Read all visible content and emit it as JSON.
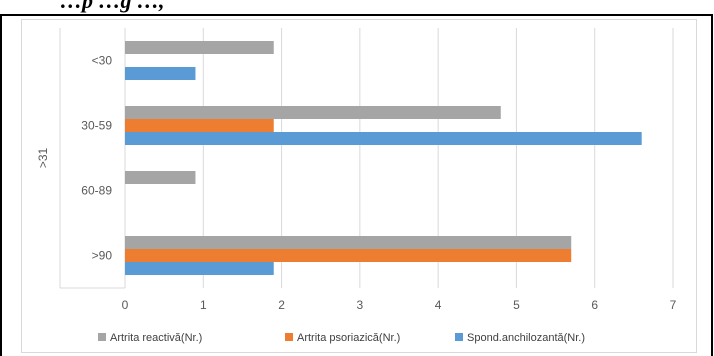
{
  "page": {
    "top_text": "…p  …g …,"
  },
  "chart_data": {
    "type": "bar",
    "orientation": "horizontal",
    "group_label": ">31",
    "categories": [
      "<30",
      "30-59",
      "60-89",
      ">90"
    ],
    "series": [
      {
        "name": "Artrita reactivă(Nr.)",
        "color": "#a5a5a5",
        "values": [
          1.9,
          4.8,
          0.9,
          5.7
        ]
      },
      {
        "name": "Artrita psoriazică(Nr.)",
        "color": "#ed7d31",
        "values": [
          0,
          1.9,
          0,
          5.7
        ]
      },
      {
        "name": "Spond.anchilozantă(Nr.)",
        "color": "#5b9bd5",
        "values": [
          0.9,
          6.6,
          0,
          1.9
        ]
      }
    ],
    "xlim": [
      0,
      7
    ],
    "xticks": [
      "0",
      "1",
      "2",
      "3",
      "4",
      "5",
      "6",
      "7"
    ],
    "grid": true,
    "legend_position": "bottom"
  }
}
